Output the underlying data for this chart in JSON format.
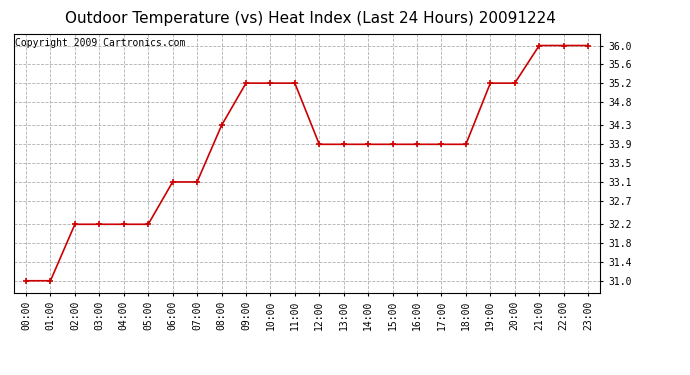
{
  "title": "Outdoor Temperature (vs) Heat Index (Last 24 Hours) 20091224",
  "copyright": "Copyright 2009 Cartronics.com",
  "x_labels": [
    "00:00",
    "01:00",
    "02:00",
    "03:00",
    "04:00",
    "05:00",
    "06:00",
    "07:00",
    "08:00",
    "09:00",
    "10:00",
    "11:00",
    "12:00",
    "13:00",
    "14:00",
    "15:00",
    "16:00",
    "17:00",
    "18:00",
    "19:00",
    "20:00",
    "21:00",
    "22:00",
    "23:00"
  ],
  "y_values": [
    31.0,
    31.0,
    32.2,
    32.2,
    32.2,
    32.2,
    33.1,
    33.1,
    34.3,
    35.2,
    35.2,
    35.2,
    33.9,
    33.9,
    33.9,
    33.9,
    33.9,
    33.9,
    33.9,
    35.2,
    35.2,
    36.0,
    36.0,
    36.0
  ],
  "y_ticks": [
    31.0,
    31.4,
    31.8,
    32.2,
    32.7,
    33.1,
    33.5,
    33.9,
    34.3,
    34.8,
    35.2,
    35.6,
    36.0
  ],
  "ylim": [
    30.75,
    36.25
  ],
  "line_color": "#cc0000",
  "marker_color": "#cc0000",
  "bg_color": "#ffffff",
  "grid_color": "#b0b0b0",
  "title_fontsize": 11,
  "copyright_fontsize": 7,
  "tick_fontsize": 7
}
